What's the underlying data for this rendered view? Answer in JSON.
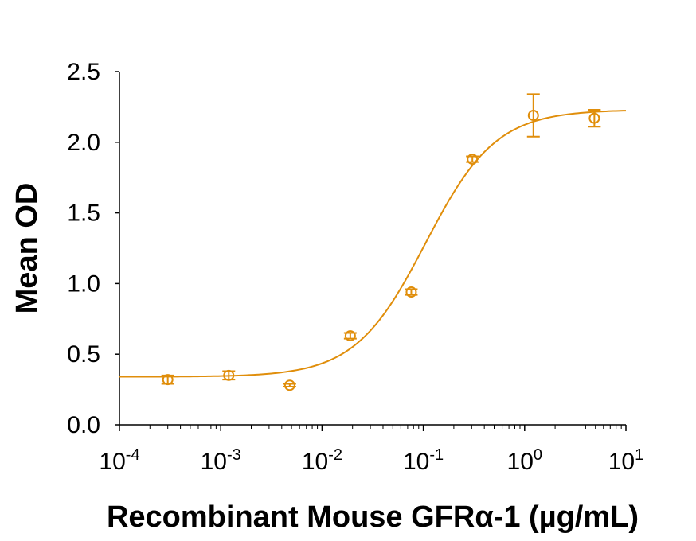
{
  "chart_data": {
    "type": "scatter",
    "xscale": "log",
    "xlim": [
      0.0001,
      10
    ],
    "ylim": [
      0,
      2.5
    ],
    "xlabel": "Recombinant Mouse GFRα-1 (µg/mL)",
    "ylabel": "Mean OD",
    "grid": false,
    "color": "#E08E0B",
    "yticks": [
      {
        "value": 0.0,
        "label": "0.0"
      },
      {
        "value": 0.5,
        "label": "0.5"
      },
      {
        "value": 1.0,
        "label": "1.0"
      },
      {
        "value": 1.5,
        "label": "1.5"
      },
      {
        "value": 2.0,
        "label": "2.0"
      },
      {
        "value": 2.5,
        "label": "2.5"
      }
    ],
    "xticks": [
      {
        "value": 0.0001,
        "base": "10",
        "exp": "-4"
      },
      {
        "value": 0.001,
        "base": "10",
        "exp": "-3"
      },
      {
        "value": 0.01,
        "base": "10",
        "exp": "-2"
      },
      {
        "value": 0.1,
        "base": "10",
        "exp": "-1"
      },
      {
        "value": 1,
        "base": "10",
        "exp": "0"
      },
      {
        "value": 10,
        "base": "10",
        "exp": "1"
      }
    ],
    "points": [
      {
        "x": 0.0003,
        "y": 0.32,
        "err": 0.03
      },
      {
        "x": 0.0012,
        "y": 0.35,
        "err": 0.03
      },
      {
        "x": 0.0048,
        "y": 0.28,
        "err": 0.01
      },
      {
        "x": 0.019,
        "y": 0.63,
        "err": 0.02
      },
      {
        "x": 0.076,
        "y": 0.94,
        "err": 0.02
      },
      {
        "x": 0.305,
        "y": 1.88,
        "err": 0.02
      },
      {
        "x": 1.22,
        "y": 2.19,
        "err": 0.15
      },
      {
        "x": 4.88,
        "y": 2.17,
        "err": 0.06
      }
    ],
    "fit": {
      "model": "4PL",
      "bottom": 0.34,
      "top": 2.23,
      "ec50": 0.105,
      "hill": 1.25
    }
  }
}
